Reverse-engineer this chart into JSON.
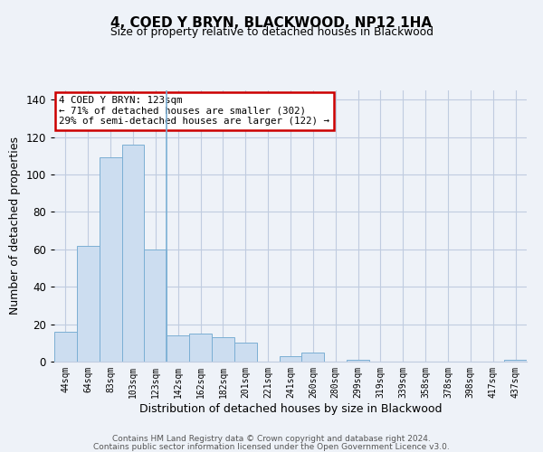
{
  "title": "4, COED Y BRYN, BLACKWOOD, NP12 1HA",
  "subtitle": "Size of property relative to detached houses in Blackwood",
  "xlabel": "Distribution of detached houses by size in Blackwood",
  "ylabel": "Number of detached properties",
  "bar_labels": [
    "44sqm",
    "64sqm",
    "83sqm",
    "103sqm",
    "123sqm",
    "142sqm",
    "162sqm",
    "182sqm",
    "201sqm",
    "221sqm",
    "241sqm",
    "260sqm",
    "280sqm",
    "299sqm",
    "319sqm",
    "339sqm",
    "358sqm",
    "378sqm",
    "398sqm",
    "417sqm",
    "437sqm"
  ],
  "bar_values": [
    16,
    62,
    109,
    116,
    60,
    14,
    15,
    13,
    10,
    0,
    3,
    5,
    0,
    1,
    0,
    0,
    0,
    0,
    0,
    0,
    1
  ],
  "bar_color": "#ccddf0",
  "bar_edge_color": "#7bafd4",
  "highlight_bar_index": 4,
  "annotation_text_line1": "4 COED Y BRYN: 123sqm",
  "annotation_text_line2": "← 71% of detached houses are smaller (302)",
  "annotation_text_line3": "29% of semi-detached houses are larger (122) →",
  "annotation_box_facecolor": "#ffffff",
  "annotation_box_edgecolor": "#cc0000",
  "ylim": [
    0,
    145
  ],
  "yticks": [
    0,
    20,
    40,
    60,
    80,
    100,
    120,
    140
  ],
  "background_color": "#eef2f8",
  "grid_color": "#c0cce0",
  "footer_line1": "Contains HM Land Registry data © Crown copyright and database right 2024.",
  "footer_line2": "Contains public sector information licensed under the Open Government Licence v3.0."
}
